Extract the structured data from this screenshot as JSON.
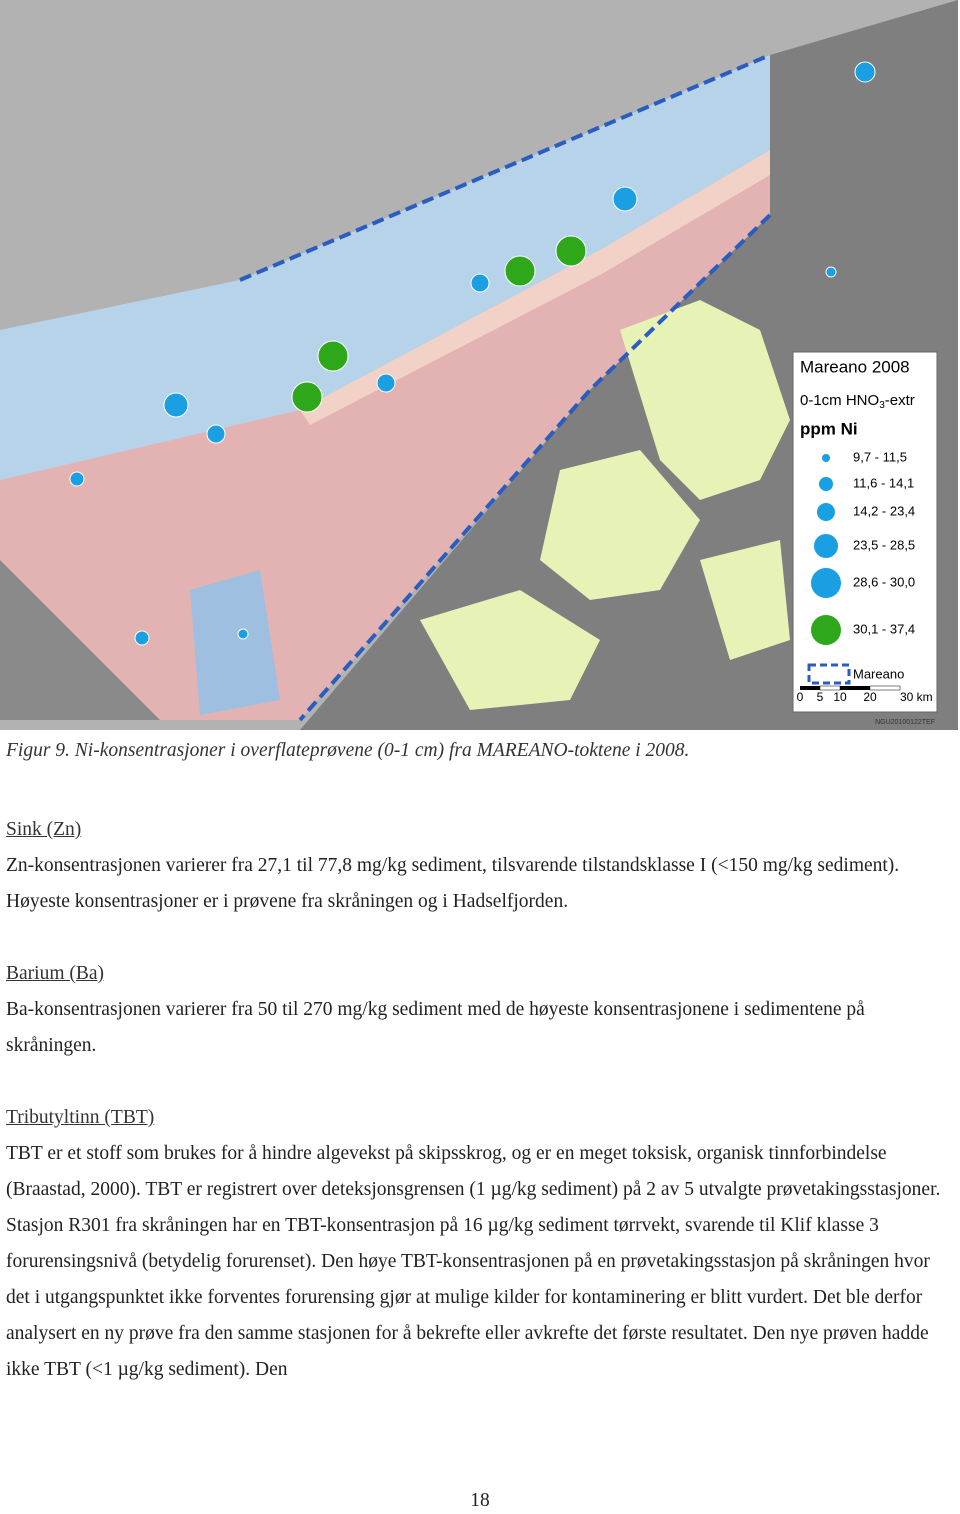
{
  "figure": {
    "legend": {
      "title": "Mareano 2008",
      "subtitle": [
        "0-1cm HNO",
        "3",
        "-extr"
      ],
      "unit": "ppm Ni",
      "classes": [
        "9,7 - 11,5",
        "11,6 - 14,1",
        "14,2 - 23,4",
        "23,5 - 28,5",
        "28,6 - 30,0",
        "30,1 - 37,4"
      ],
      "boundary": "Mareano",
      "scale": [
        "0",
        "5",
        "10",
        "20",
        "30 km"
      ]
    },
    "credit": "NGU20100122TEF",
    "caption": "Figur 9. Ni-konsentrasjoner i overflateprøvene (0-1 cm) fra MAREANO-toktene i 2008."
  },
  "sections": [
    {
      "heading": "Sink (Zn)",
      "paragraphs": [
        "Zn-konsentrasjonen varierer fra 27,1 til 77,8 mg/kg sediment, tilsvarende tilstandsklasse I (<150 mg/kg sediment). Høyeste konsentrasjoner er i prøvene fra skråningen og i Hadselfjorden."
      ]
    },
    {
      "heading": "Barium (Ba)",
      "paragraphs": [
        "Ba-konsentrasjonen varierer fra 50 til 270 mg/kg sediment med de høyeste konsentrasjonene i sedimentene på skråningen."
      ]
    },
    {
      "heading": "Tributyltinn (TBT)",
      "paragraphs": [
        "TBT er et stoff som brukes for å hindre algevekst på skipsskrog, og er en meget toksisk, organisk tinnforbindelse (Braastad, 2000). TBT er registrert over deteksjonsgrensen (1 µg/kg sediment) på 2 av 5 utvalgte prøvetakingsstasjoner. Stasjon R301 fra skråningen har en TBT-konsentrasjon på 16 µg/kg sediment tørrvekt, svarende til Klif klasse 3 forurensingsnivå (betydelig forurenset). Den høye TBT-konsentrasjonen på en prøvetakingsstasjon på skråningen hvor det i utgangspunktet ikke forventes forurensing gjør at mulige kilder for kontaminering er blitt vurdert. Det ble derfor analysert en ny prøve fra den samme stasjonen for å bekrefte eller avkrefte det første resultatet. Den nye prøven hadde ikke TBT (<1 µg/kg sediment). Den"
      ]
    }
  ],
  "page_number": "18"
}
